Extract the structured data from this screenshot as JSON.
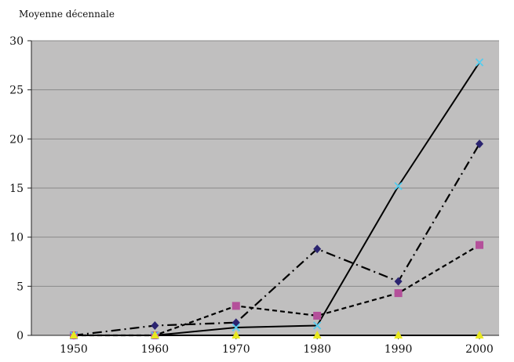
{
  "chart_data": {
    "type": "line",
    "ylabel": "Moyenne décennale",
    "x": [
      1950,
      1960,
      1970,
      1980,
      1990,
      2000
    ],
    "xticks": [
      "1950",
      "1960",
      "1970",
      "1980",
      "1990",
      "2000"
    ],
    "ylim": [
      0,
      30
    ],
    "yticks": [
      "0",
      "5",
      "10",
      "15",
      "20",
      "25",
      "30"
    ],
    "ytick_values": [
      0,
      5,
      10,
      15,
      20,
      25,
      30
    ],
    "grid": true,
    "legend": "none",
    "background": "#c0bfbf",
    "series": [
      {
        "values": [
          0,
          1.0,
          1.3,
          8.8,
          5.5,
          19.5
        ],
        "color": "#2b2470",
        "line_color": "#000000",
        "dash": "dashdot",
        "marker": "diamond"
      },
      {
        "values": [
          0,
          0,
          3.0,
          2.0,
          4.3,
          9.2
        ],
        "color": "#b4509a",
        "line_color": "#000000",
        "dash": "dashed",
        "marker": "square"
      },
      {
        "values": [
          0,
          0,
          0.8,
          1.0,
          15.2,
          27.8
        ],
        "color": "#55ccee",
        "line_color": "#000000",
        "dash": "solid",
        "marker": "x"
      },
      {
        "values": [
          0,
          0,
          0,
          0,
          0,
          0
        ],
        "color": "#e8e820",
        "line_color": "#000000",
        "dash": "solid",
        "marker": "triangle"
      }
    ]
  }
}
